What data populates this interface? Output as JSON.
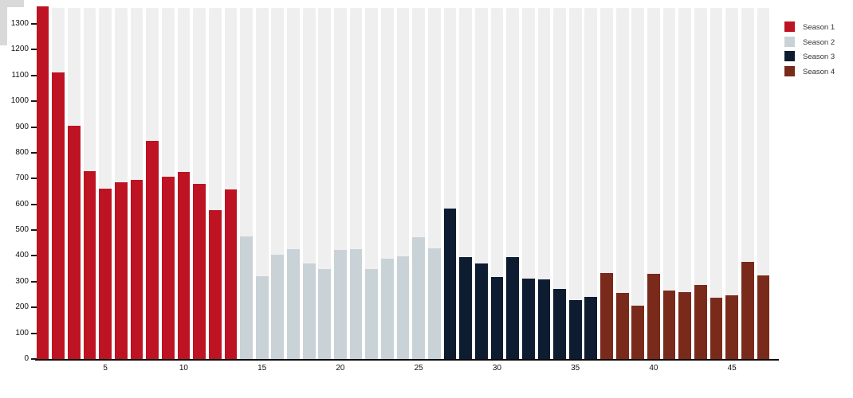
{
  "chart_data": {
    "type": "bar",
    "title": "",
    "xlabel": "",
    "ylabel": "",
    "x_tick_labels": [
      5,
      10,
      15,
      20,
      25,
      30,
      35,
      40,
      45
    ],
    "y_tick_labels": [
      0,
      100,
      200,
      300,
      400,
      500,
      600,
      700,
      800,
      900,
      1000,
      1100,
      1200,
      1300
    ],
    "y_max": 1370,
    "x_range_episodes": [
      1,
      47
    ],
    "grid": "off",
    "background_stripes": true,
    "stripe_color": "#f0eff0",
    "legend_position": "top-right",
    "series": [
      {
        "name": "Season 1",
        "color": "#bd1322",
        "first_x": 1,
        "values": [
          1368,
          1112,
          905,
          730,
          660,
          685,
          695,
          845,
          708,
          727,
          678,
          578,
          658
        ]
      },
      {
        "name": "Season 2",
        "color": "#c9d2d7",
        "first_x": 14,
        "values": [
          475,
          320,
          405,
          425,
          370,
          348,
          422,
          425,
          348,
          388,
          398,
          473,
          430
        ]
      },
      {
        "name": "Season 3",
        "color": "#0d1c30",
        "first_x": 27,
        "values": [
          585,
          396,
          370,
          318,
          396,
          313,
          310,
          273,
          227,
          240
        ]
      },
      {
        "name": "Season 4",
        "color": "#7a2a1a",
        "first_x": 37,
        "values": [
          332,
          255,
          208,
          330,
          266,
          258,
          288,
          238,
          248,
          378,
          325
        ]
      }
    ],
    "legend_entries": [
      "Season 1",
      "Season 2",
      "Season 3",
      "Season 4"
    ],
    "axis_color": "#0b0b0b",
    "tick_text_color": "#111111",
    "legend_text_color": "#333333"
  }
}
